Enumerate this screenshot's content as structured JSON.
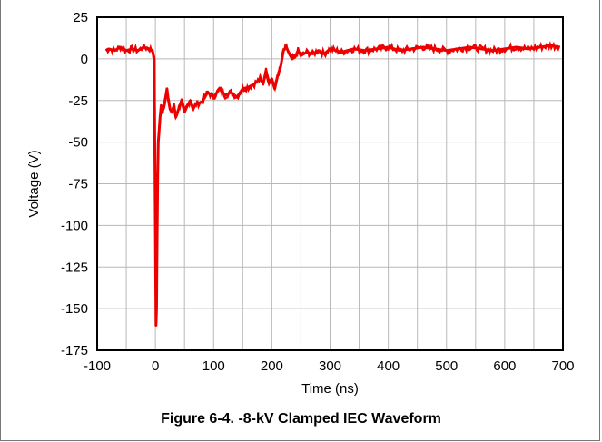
{
  "caption": "Figure 6-4. -8-kV Clamped IEC Waveform",
  "chart_data": {
    "type": "line",
    "title": "",
    "xlabel": "Time (ns)",
    "ylabel": "Voltage (V)",
    "xlim": [
      -100,
      700
    ],
    "ylim": [
      -175,
      25
    ],
    "xticks": [
      -100,
      0,
      100,
      200,
      300,
      400,
      500,
      600,
      700
    ],
    "yticks": [
      25,
      0,
      -25,
      -50,
      -75,
      -100,
      -125,
      -150,
      -175
    ],
    "grid": true,
    "color": "#ee0000",
    "series": [
      {
        "name": "",
        "x": [
          -85,
          -80,
          -70,
          -60,
          -50,
          -40,
          -30,
          -20,
          -10,
          -5,
          -2,
          0,
          1,
          2,
          3,
          4,
          5,
          6,
          8,
          10,
          12,
          15,
          18,
          20,
          22,
          25,
          28,
          32,
          35,
          40,
          45,
          50,
          55,
          60,
          65,
          70,
          80,
          90,
          100,
          110,
          120,
          130,
          140,
          150,
          160,
          170,
          180,
          185,
          190,
          195,
          200,
          205,
          210,
          215,
          220,
          225,
          230,
          235,
          240,
          245,
          250,
          260,
          270,
          280,
          290,
          300,
          320,
          340,
          360,
          380,
          400,
          420,
          440,
          460,
          480,
          500,
          520,
          540,
          560,
          580,
          600,
          620,
          640,
          660,
          680,
          695
        ],
        "y": [
          5,
          6,
          5,
          7,
          5,
          6,
          5,
          7,
          6,
          5,
          0,
          -100,
          -160,
          -150,
          -110,
          -70,
          -50,
          -45,
          -35,
          -28,
          -32,
          -28,
          -22,
          -18,
          -24,
          -30,
          -32,
          -28,
          -35,
          -30,
          -25,
          -32,
          -28,
          -25,
          -30,
          -27,
          -26,
          -20,
          -23,
          -18,
          -22,
          -20,
          -23,
          -18,
          -17,
          -15,
          -12,
          -15,
          -7,
          -14,
          -12,
          -18,
          -10,
          -5,
          5,
          7,
          3,
          0,
          1,
          5,
          2,
          4,
          3,
          5,
          3,
          6,
          4,
          6,
          5,
          6,
          7,
          5,
          6,
          7,
          6,
          5,
          6,
          7,
          6,
          5,
          6,
          7,
          6,
          7,
          8,
          7
        ]
      }
    ]
  }
}
